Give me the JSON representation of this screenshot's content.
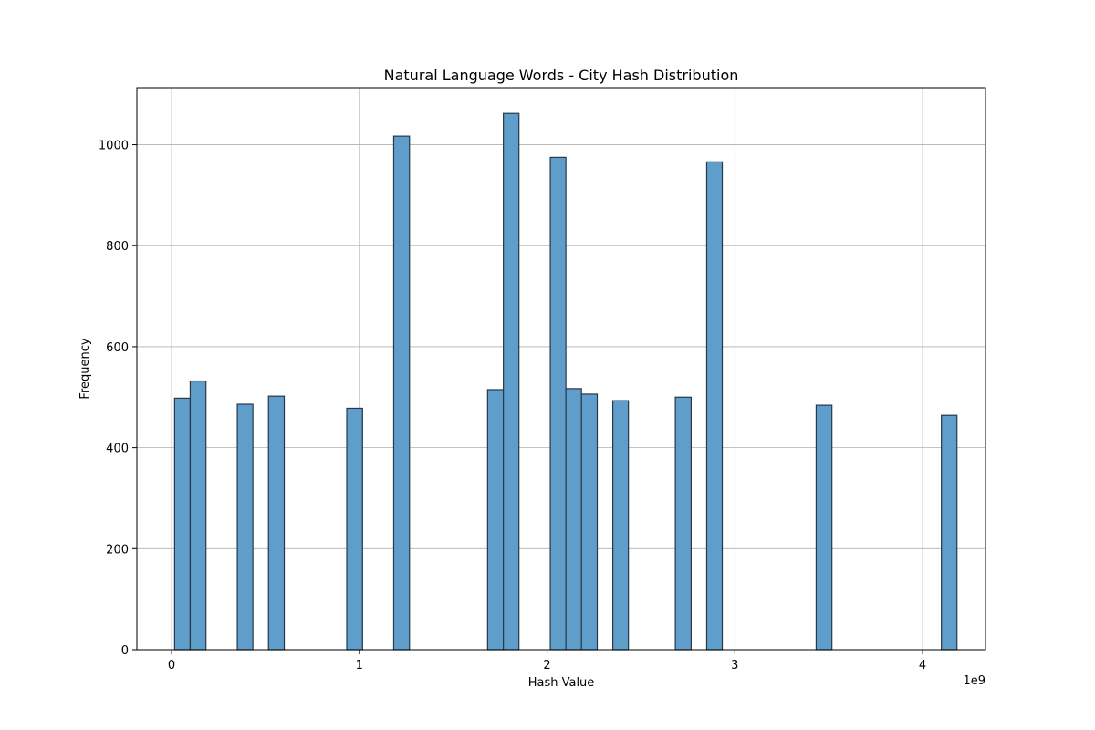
{
  "chart_data": {
    "type": "bar",
    "title": "Natural Language Words - City Hash Distribution",
    "xlabel": "Hash Value",
    "ylabel": "Frequency",
    "x_offset_text": "1e9",
    "xlim": [
      -0.185,
      4.335
    ],
    "ylim": [
      0,
      1113
    ],
    "x_ticks": [
      0,
      1,
      2,
      3,
      4
    ],
    "x_tick_labels": [
      "0",
      "1",
      "2",
      "3",
      "4"
    ],
    "y_ticks": [
      0,
      200,
      400,
      600,
      800,
      1000
    ],
    "y_tick_labels": [
      "0",
      "200",
      "400",
      "600",
      "800",
      "1000"
    ],
    "grid": true,
    "bar_color": "#5f9ecb",
    "edge_color": "#283848",
    "bins": [
      {
        "left": 0.016,
        "right": 0.099,
        "value": 498
      },
      {
        "left": 0.099,
        "right": 0.183,
        "value": 532
      },
      {
        "left": 0.35,
        "right": 0.433,
        "value": 486
      },
      {
        "left": 0.516,
        "right": 0.6,
        "value": 502
      },
      {
        "left": 0.933,
        "right": 1.017,
        "value": 478
      },
      {
        "left": 1.183,
        "right": 1.267,
        "value": 1017
      },
      {
        "left": 1.683,
        "right": 1.767,
        "value": 515
      },
      {
        "left": 1.767,
        "right": 1.85,
        "value": 1062
      },
      {
        "left": 2.017,
        "right": 2.1,
        "value": 975
      },
      {
        "left": 2.1,
        "right": 2.183,
        "value": 517
      },
      {
        "left": 2.183,
        "right": 2.267,
        "value": 506
      },
      {
        "left": 2.35,
        "right": 2.433,
        "value": 493
      },
      {
        "left": 2.683,
        "right": 2.767,
        "value": 500
      },
      {
        "left": 2.85,
        "right": 2.933,
        "value": 966
      },
      {
        "left": 3.433,
        "right": 3.517,
        "value": 484
      },
      {
        "left": 4.1,
        "right": 4.183,
        "value": 464
      }
    ]
  }
}
